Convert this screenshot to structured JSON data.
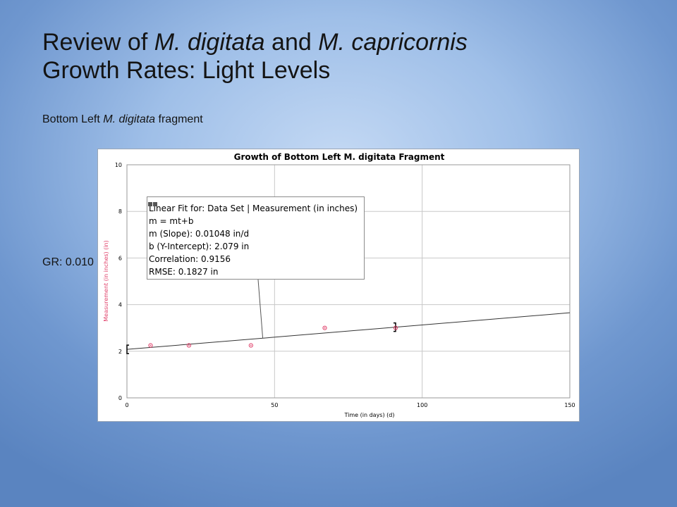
{
  "slide": {
    "title_line1_pre": "Review of ",
    "title_species1": "M. digitata",
    "title_and": " and ",
    "title_species2": "M. capricornis",
    "title_line2": "Growth Rates: Light Levels",
    "subtitle_pre": "Bottom Left ",
    "subtitle_species": "M. digitata",
    "subtitle_post": " fragment",
    "gr_text": "GR: 0.010"
  },
  "fit_box": {
    "line1": "Linear Fit for: Data Set | Measurement (in inches)",
    "line2": "m = mt+b",
    "line3": "m (Slope): 0.01048 in/d",
    "line4": "b (Y-Intercept): 2.079 in",
    "line5": "Correlation: 0.9156",
    "line6": "RMSE: 0.1827 in"
  },
  "chart_data": {
    "type": "scatter",
    "title": "Growth of Bottom Left M. digitata Fragment",
    "xlabel": "Time (in days) (d)",
    "ylabel": "Measurement (in inches) (in)",
    "xlim": [
      0,
      150
    ],
    "ylim": [
      0,
      10
    ],
    "x_ticks": [
      0,
      50,
      100,
      150
    ],
    "y_ticks": [
      0,
      2,
      4,
      6,
      8,
      10
    ],
    "grid": true,
    "points": [
      {
        "x": 8,
        "y": 2.25
      },
      {
        "x": 21,
        "y": 2.25
      },
      {
        "x": 42,
        "y": 2.25
      },
      {
        "x": 67,
        "y": 3.0
      },
      {
        "x": 91,
        "y": 3.0
      }
    ],
    "fit": {
      "slope": 0.01048,
      "intercept": 2.079,
      "x_range": [
        0,
        150
      ]
    },
    "fit_range_brackets": [
      0,
      91
    ],
    "callout_x": 46,
    "colors": {
      "points": "#e0406a",
      "axis_label": "#e0406a",
      "fit_line": "#333333",
      "grid": "#c8c8c8"
    }
  }
}
